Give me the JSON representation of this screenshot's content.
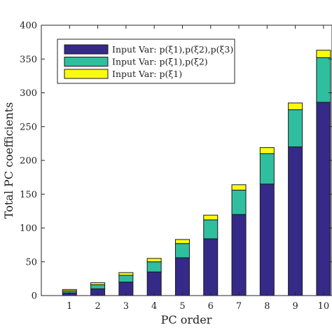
{
  "chart_data": {
    "type": "bar",
    "stacked": true,
    "categories": [
      "1",
      "2",
      "3",
      "4",
      "5",
      "6",
      "7",
      "8",
      "9",
      "10"
    ],
    "series": [
      {
        "name": "Input Var: p(ξ1),p(ξ2),p(ξ3)",
        "color": "#352a87",
        "values": [
          4,
          10,
          20,
          35,
          56,
          84,
          120,
          165,
          220,
          286
        ]
      },
      {
        "name": "Input Var: p(ξ1),p(ξ2)",
        "color": "#2fbf9f",
        "values": [
          3,
          6,
          10,
          15,
          21,
          28,
          36,
          45,
          55,
          66
        ]
      },
      {
        "name": "Input Var: p(ξ1)",
        "color": "#f9fb0e",
        "values": [
          2,
          3,
          4,
          5,
          6,
          7,
          8,
          9,
          10,
          11
        ]
      }
    ],
    "xlabel": "PC order",
    "ylabel": "Total PC coefficients",
    "ylim": [
      0,
      400
    ],
    "yticks": [
      0,
      50,
      100,
      150,
      200,
      250,
      300,
      350,
      400
    ],
    "legend_position": "top-left",
    "grid": false
  }
}
